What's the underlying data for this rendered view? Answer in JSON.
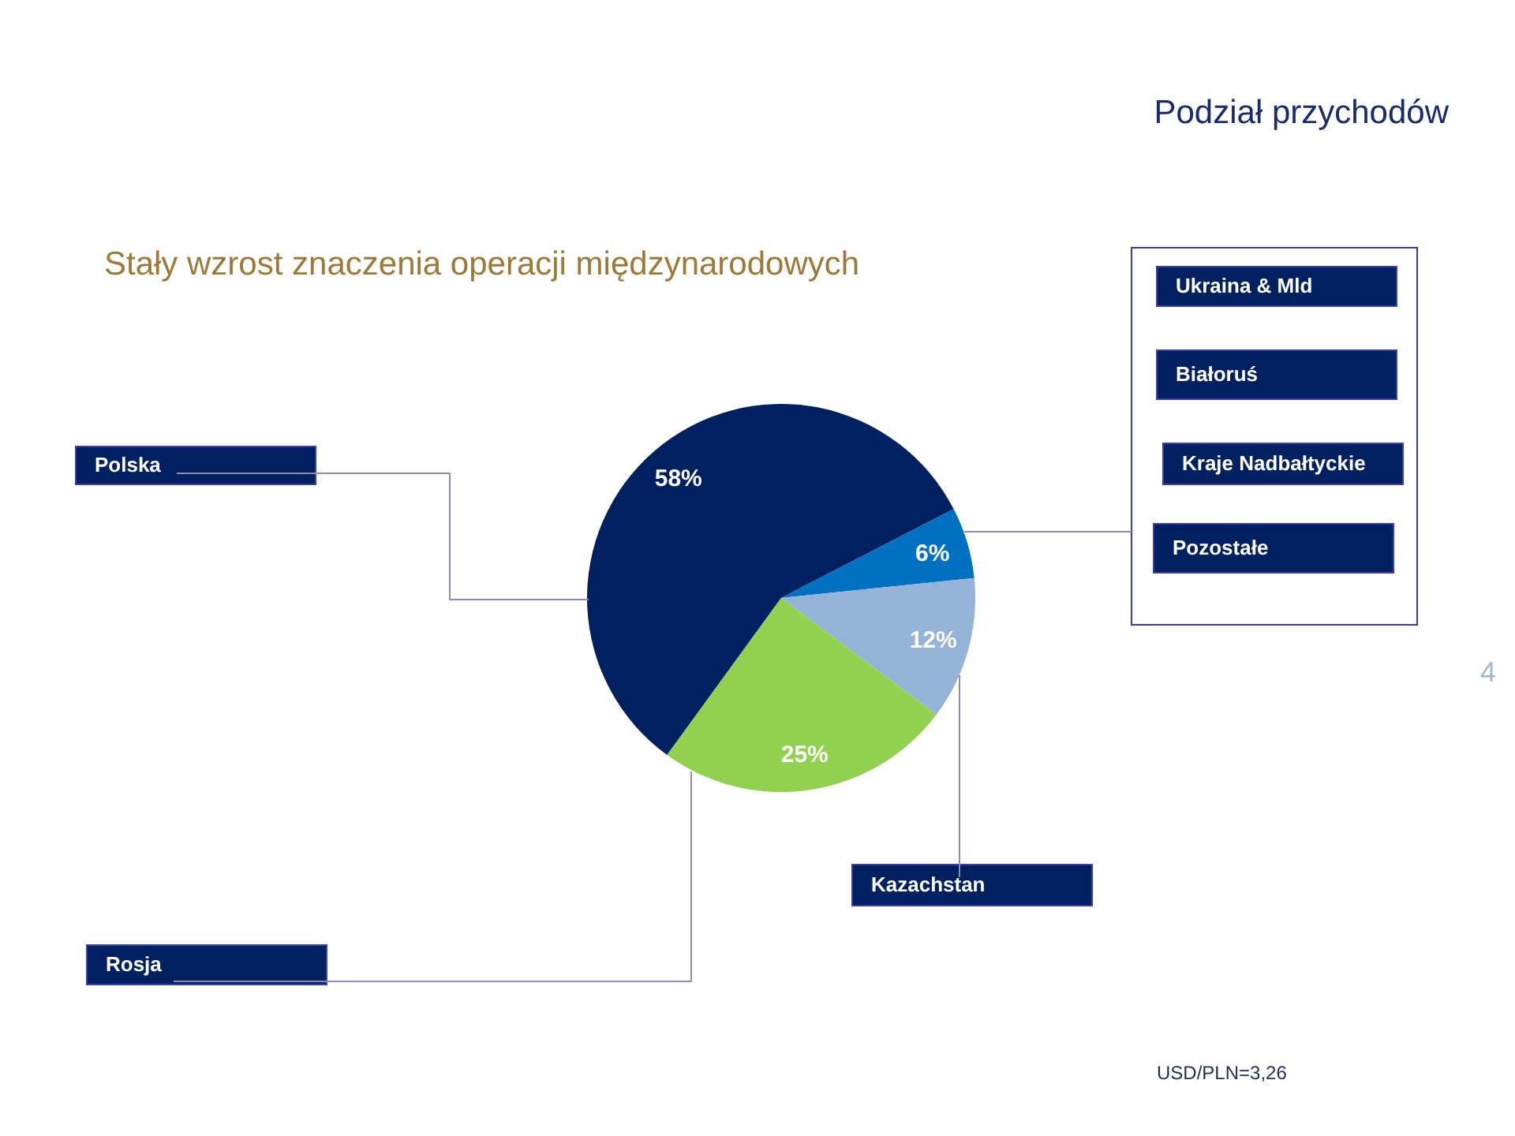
{
  "chart_data": {
    "type": "pie",
    "title": "Podział przychodów",
    "subtitle": "Stały wzrost znaczenia operacji międzynarodowych",
    "categories": [
      "Polska",
      null,
      "Kazachstan",
      "Rosja"
    ],
    "values": [
      58,
      6,
      12,
      25
    ],
    "colors": [
      "#002060",
      "#0070c0",
      "#95b3d7",
      "#92d050"
    ],
    "value_labels": [
      "58%",
      "6%",
      "12%",
      "25%"
    ],
    "annotations": [
      "Ukraina & Mld",
      "Białoruś",
      "Kraje Nadbałtyckie",
      "Pozostałe",
      "USD/PLN=3,26",
      "4"
    ]
  }
}
